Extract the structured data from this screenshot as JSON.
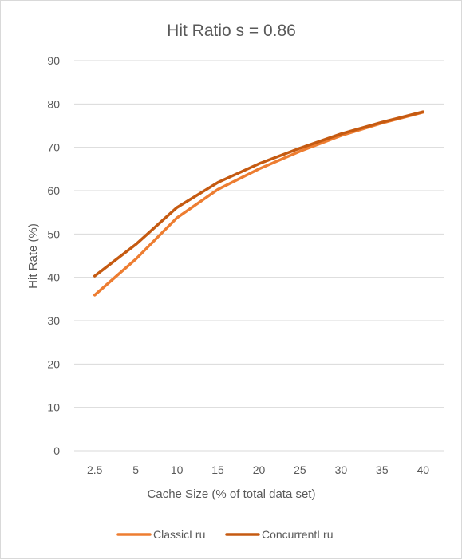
{
  "chart_data": {
    "type": "line",
    "title": "Hit Ratio s = 0.86",
    "xlabel": "Cache Size (% of total data set)",
    "ylabel": "Hit Rate (%)",
    "categories": [
      "2.5",
      "5",
      "10",
      "15",
      "20",
      "25",
      "30",
      "35",
      "40"
    ],
    "ylim": [
      0,
      90
    ],
    "yticks": [
      "0",
      "10",
      "20",
      "30",
      "40",
      "50",
      "60",
      "70",
      "80",
      "90"
    ],
    "grid": true,
    "legend_position": "bottom",
    "series": [
      {
        "name": "ClassicLru",
        "color": "#ED7D31",
        "values": [
          35.9,
          44.2,
          53.7,
          60.3,
          65.0,
          69.1,
          72.7,
          75.6,
          78.1
        ]
      },
      {
        "name": "ConcurrentLru",
        "color": "#C55A11",
        "values": [
          40.3,
          47.6,
          56.1,
          61.9,
          66.2,
          69.8,
          73.1,
          75.8,
          78.2
        ]
      }
    ]
  }
}
